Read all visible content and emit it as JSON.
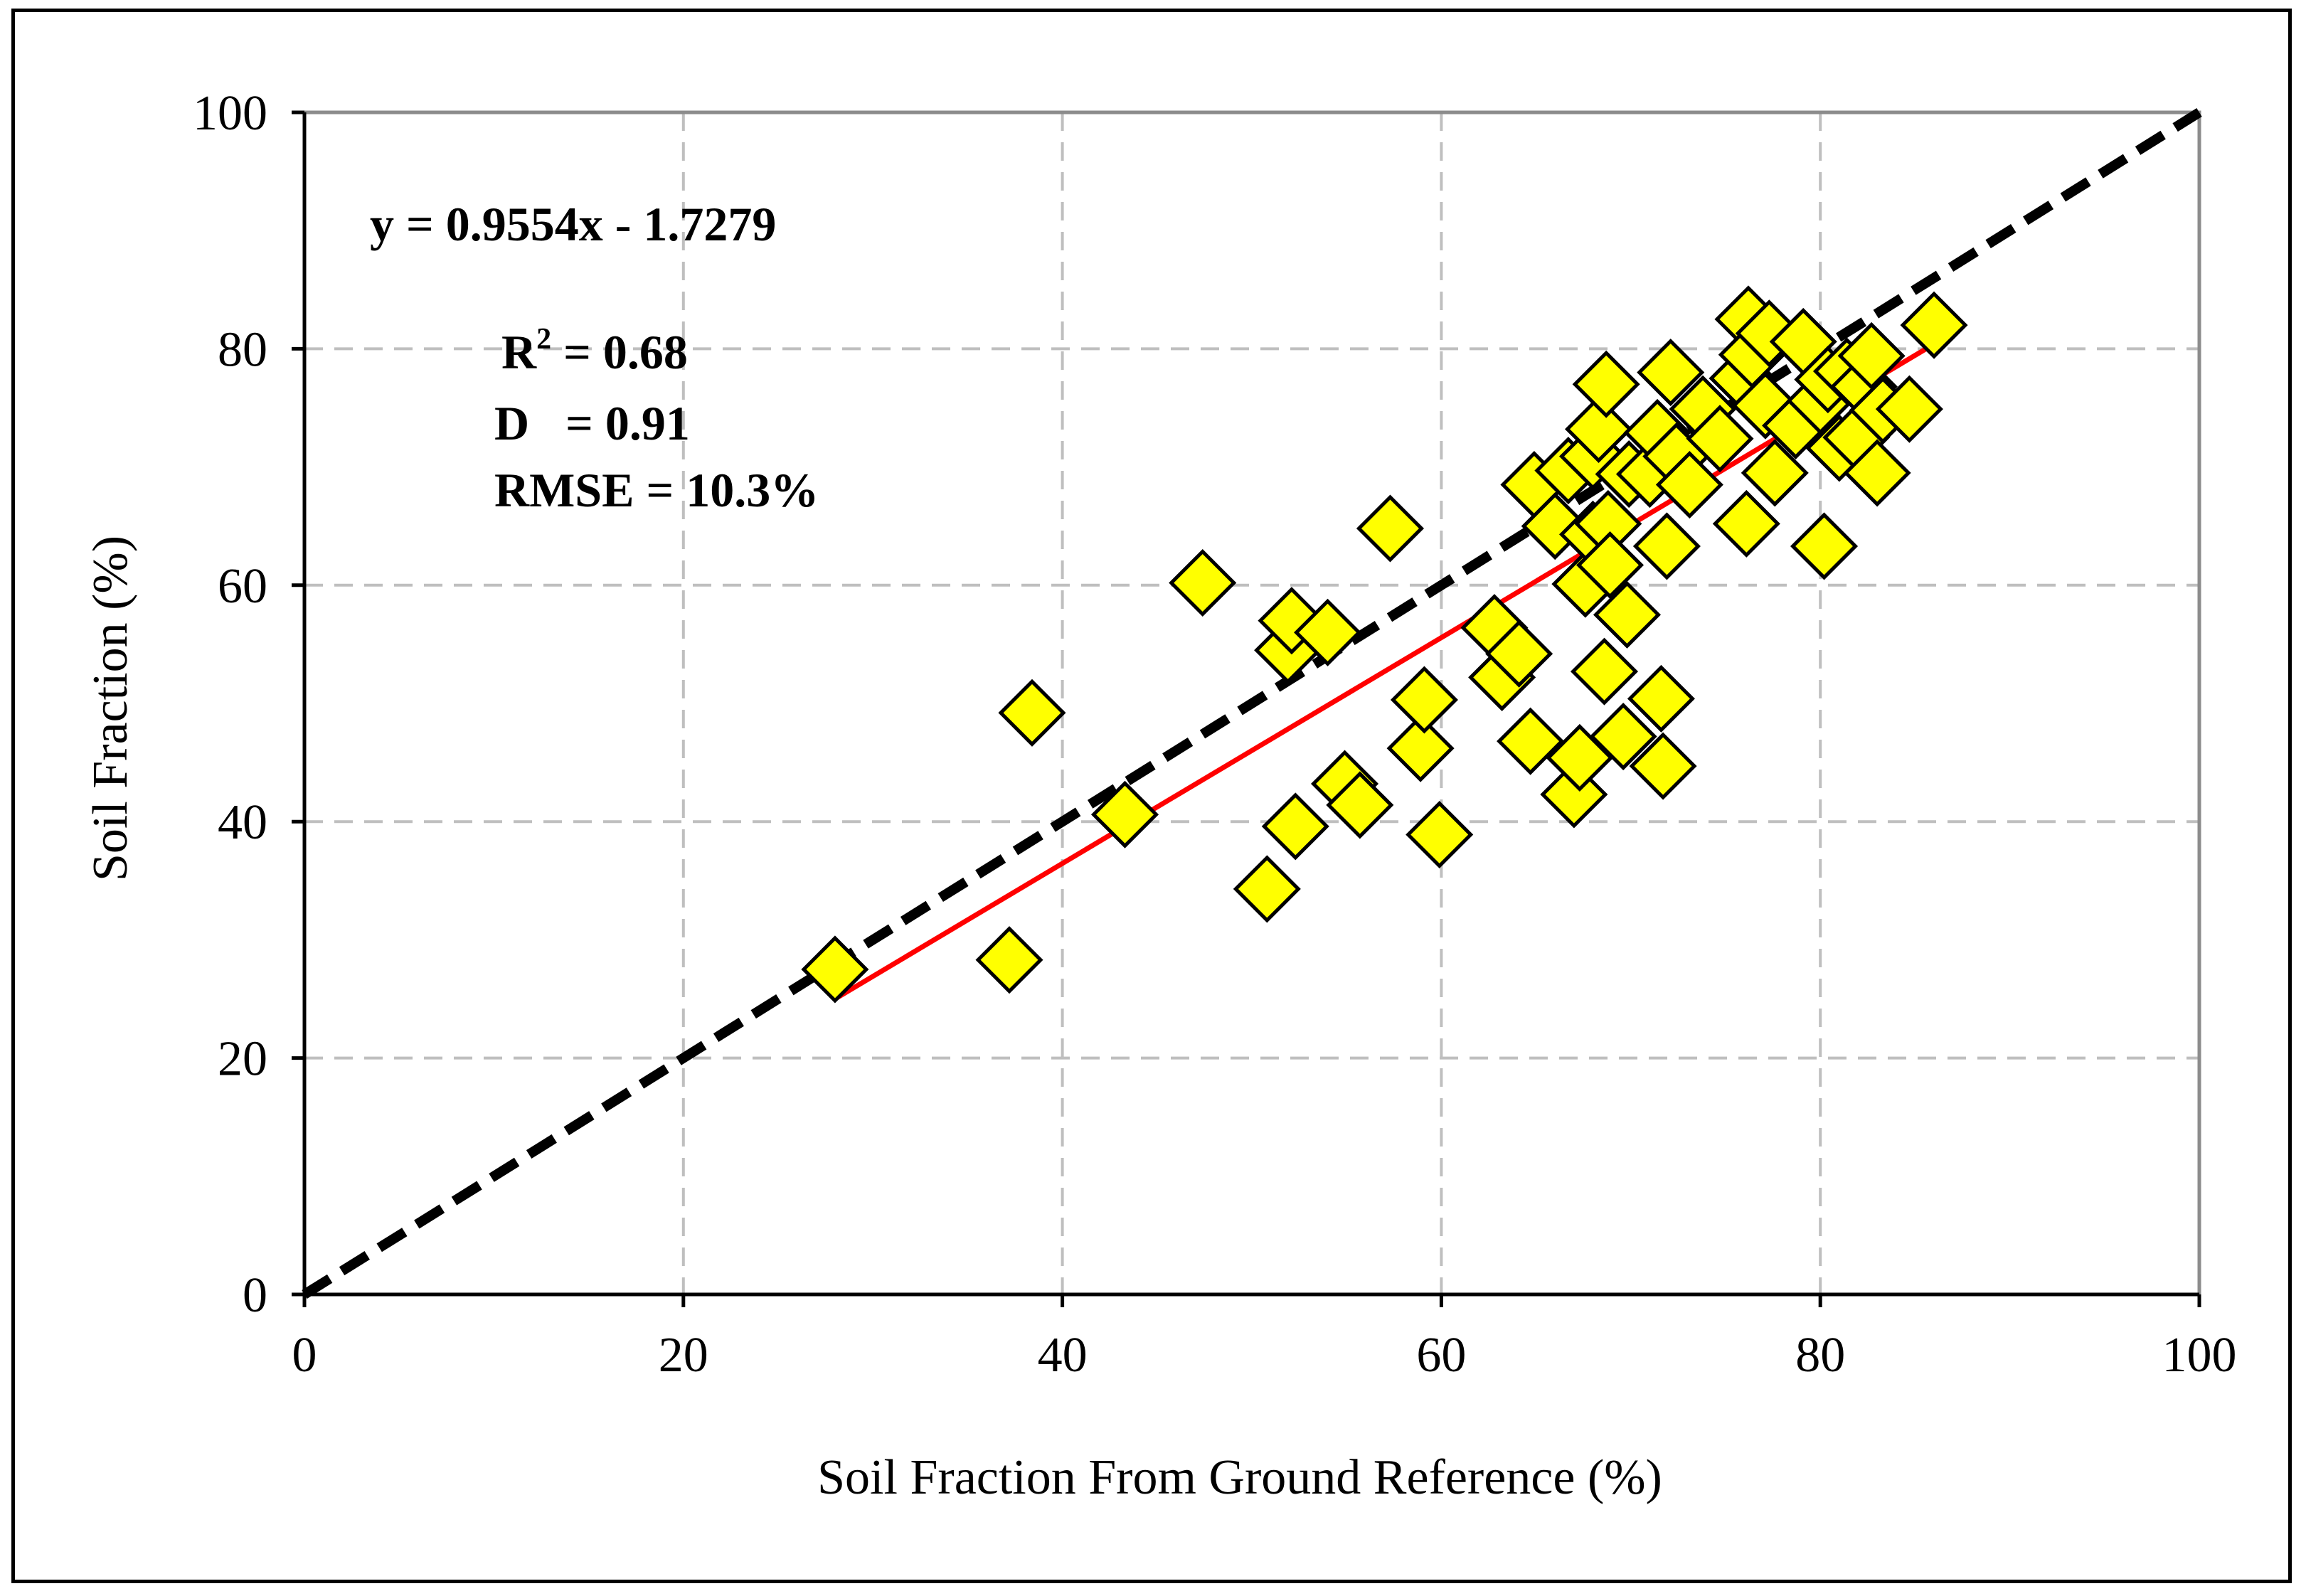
{
  "chart_data": {
    "type": "scatter",
    "xlabel": "Soil Fraction From Ground Reference (%)",
    "ylabel": "Soil Fraction (%)",
    "xlim": [
      0,
      100
    ],
    "ylim": [
      0,
      100
    ],
    "xticks": [
      "0",
      "20",
      "40",
      "60",
      "80",
      "100"
    ],
    "yticks": [
      "0",
      "20",
      "40",
      "60",
      "80",
      "100"
    ],
    "grid": true,
    "grid_style": "dashed",
    "annotations": {
      "equation": "y = 0.9554x - 1.7279",
      "r2_label": "R",
      "r2_sup": "2",
      "r2_value": " = 0.68",
      "d_label": "D   = 0.91",
      "rmse_label": "RMSE = 10.3%"
    },
    "colors": {
      "marker_fill": "#ffff00",
      "marker_stroke": "#000000",
      "fit_line": "#ff0000",
      "one_to_one_line": "#000000",
      "grid": "#bfbfbf"
    },
    "one_to_one": {
      "x": [
        0,
        100
      ],
      "y": [
        0,
        100
      ]
    },
    "fit_line": {
      "x": [
        28,
        86
      ],
      "y": [
        25.0,
        80.4
      ]
    },
    "points": [
      [
        28.0,
        27.5
      ],
      [
        37.2,
        28.3
      ],
      [
        38.4,
        49.2
      ],
      [
        43.3,
        40.6
      ],
      [
        47.4,
        60.2
      ],
      [
        50.8,
        34.3
      ],
      [
        51.9,
        54.5
      ],
      [
        52.1,
        57.0
      ],
      [
        52.3,
        39.6
      ],
      [
        54.0,
        56.0
      ],
      [
        54.9,
        43.2
      ],
      [
        55.7,
        41.4
      ],
      [
        57.3,
        64.8
      ],
      [
        58.9,
        46.2
      ],
      [
        59.1,
        50.3
      ],
      [
        59.9,
        38.9
      ],
      [
        62.8,
        56.4
      ],
      [
        63.2,
        52.2
      ],
      [
        64.1,
        54.2
      ],
      [
        64.7,
        46.8
      ],
      [
        64.9,
        68.5
      ],
      [
        66.0,
        65.0
      ],
      [
        66.7,
        69.7
      ],
      [
        67.0,
        42.3
      ],
      [
        67.3,
        45.4
      ],
      [
        67.6,
        60.1
      ],
      [
        68.0,
        64.3
      ],
      [
        68.0,
        70.9
      ],
      [
        68.3,
        73.2
      ],
      [
        68.6,
        52.7
      ],
      [
        68.7,
        77.0
      ],
      [
        68.8,
        65.2
      ],
      [
        68.9,
        61.7
      ],
      [
        69.6,
        47.2
      ],
      [
        69.8,
        57.5
      ],
      [
        69.9,
        69.4
      ],
      [
        71.0,
        69.4
      ],
      [
        71.4,
        72.9
      ],
      [
        71.6,
        50.4
      ],
      [
        71.7,
        44.7
      ],
      [
        71.9,
        63.3
      ],
      [
        72.1,
        78.0
      ],
      [
        72.4,
        70.9
      ],
      [
        73.1,
        68.5
      ],
      [
        73.8,
        74.9
      ],
      [
        74.7,
        72.4
      ],
      [
        75.9,
        77.5
      ],
      [
        76.1,
        65.2
      ],
      [
        76.2,
        82.5
      ],
      [
        76.4,
        79.5
      ],
      [
        77.1,
        75.2
      ],
      [
        77.3,
        81.3
      ],
      [
        77.6,
        69.5
      ],
      [
        78.7,
        73.5
      ],
      [
        79.1,
        80.6
      ],
      [
        80.0,
        75.6
      ],
      [
        80.2,
        63.3
      ],
      [
        80.4,
        77.4
      ],
      [
        81.0,
        71.6
      ],
      [
        81.4,
        78.1
      ],
      [
        81.9,
        72.5
      ],
      [
        82.3,
        76.8
      ],
      [
        82.7,
        79.4
      ],
      [
        83.0,
        69.5
      ],
      [
        83.3,
        74.8
      ],
      [
        84.7,
        74.9
      ],
      [
        86.0,
        82.0
      ]
    ]
  }
}
